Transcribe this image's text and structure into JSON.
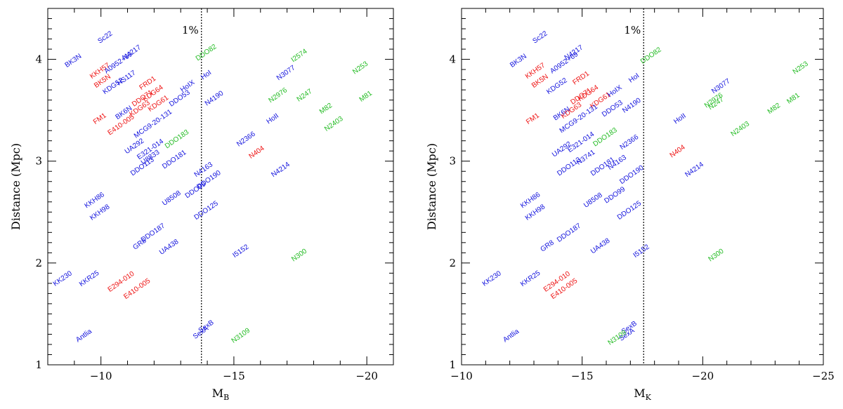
{
  "colors": {
    "blue": "#1010dd",
    "red": "#ee1111",
    "green": "#22bb22"
  },
  "chart_data": [
    {
      "type": "scatter",
      "xlabel": "M",
      "xlabel_sub": "B",
      "ylabel": "Distance (Mpc)",
      "xlim": [
        -8,
        -21
      ],
      "ylim": [
        1,
        4.5
      ],
      "xticks": [
        -10,
        -15,
        -20
      ],
      "xtick_labels": [
        "−10",
        "−15",
        "−20"
      ],
      "yticks": [
        1,
        2,
        3,
        4
      ],
      "ytick_labels": [
        "1",
        "2",
        "3",
        "4"
      ],
      "vline": {
        "x": -13.78,
        "label": "1%"
      },
      "points": [
        {
          "label": "BK3N",
          "x": -9.0,
          "y": 3.97,
          "c": "blue"
        },
        {
          "label": "Sc22",
          "x": -10.2,
          "y": 4.2,
          "c": "blue"
        },
        {
          "label": "KKH57",
          "x": -10.0,
          "y": 3.87,
          "c": "red"
        },
        {
          "label": "A0952+69",
          "x": -10.7,
          "y": 3.95,
          "c": "blue"
        },
        {
          "label": "N4217",
          "x": -11.2,
          "y": 4.05,
          "c": "blue"
        },
        {
          "label": "BK5N",
          "x": -10.1,
          "y": 3.77,
          "c": "red"
        },
        {
          "label": "KDG52",
          "x": -10.5,
          "y": 3.72,
          "c": "blue"
        },
        {
          "label": "HS117",
          "x": -11.0,
          "y": 3.8,
          "c": "blue"
        },
        {
          "label": "FM1",
          "x": -10.0,
          "y": 3.4,
          "c": "red"
        },
        {
          "label": "BK6N",
          "x": -10.9,
          "y": 3.46,
          "c": "blue"
        },
        {
          "label": "E410-005",
          "x": -10.8,
          "y": 3.34,
          "c": "red"
        },
        {
          "label": "KDG63",
          "x": -11.5,
          "y": 3.5,
          "c": "red"
        },
        {
          "label": "FRD1",
          "x": -11.8,
          "y": 3.75,
          "c": "red"
        },
        {
          "label": "DDO71",
          "x": -11.6,
          "y": 3.6,
          "c": "red"
        },
        {
          "label": "KDG64",
          "x": -12.0,
          "y": 3.65,
          "c": "red"
        },
        {
          "label": "KDG61",
          "x": -12.2,
          "y": 3.55,
          "c": "red"
        },
        {
          "label": "MCG9-20-131",
          "x": -12.0,
          "y": 3.35,
          "c": "blue"
        },
        {
          "label": "DDO53",
          "x": -13.0,
          "y": 3.6,
          "c": "blue"
        },
        {
          "label": "HoIX",
          "x": -13.3,
          "y": 3.72,
          "c": "blue"
        },
        {
          "label": "DDO82",
          "x": -14.0,
          "y": 4.05,
          "c": "green"
        },
        {
          "label": "HoI",
          "x": -14.0,
          "y": 3.83,
          "c": "blue"
        },
        {
          "label": "N4190",
          "x": -14.3,
          "y": 3.6,
          "c": "blue"
        },
        {
          "label": "DDO183",
          "x": -12.9,
          "y": 3.2,
          "c": "green"
        },
        {
          "label": "UA292",
          "x": -11.3,
          "y": 3.13,
          "c": "blue"
        },
        {
          "label": "E321-014",
          "x": -11.9,
          "y": 3.1,
          "c": "blue"
        },
        {
          "label": "U8833",
          "x": -11.9,
          "y": 3.02,
          "c": "blue"
        },
        {
          "label": "DDO113",
          "x": -11.6,
          "y": 2.93,
          "c": "blue"
        },
        {
          "label": "DDO181",
          "x": -12.8,
          "y": 3.0,
          "c": "blue"
        },
        {
          "label": "N4163",
          "x": -13.9,
          "y": 2.9,
          "c": "blue"
        },
        {
          "label": "DDO190",
          "x": -14.1,
          "y": 2.8,
          "c": "blue"
        },
        {
          "label": "DDO99",
          "x": -13.6,
          "y": 2.7,
          "c": "blue"
        },
        {
          "label": "U8508",
          "x": -12.7,
          "y": 2.62,
          "c": "blue"
        },
        {
          "label": "DDO125",
          "x": -14.0,
          "y": 2.5,
          "c": "blue"
        },
        {
          "label": "KKH86",
          "x": -9.8,
          "y": 2.6,
          "c": "blue"
        },
        {
          "label": "KKH98",
          "x": -10.0,
          "y": 2.48,
          "c": "blue"
        },
        {
          "label": "DDO187",
          "x": -12.0,
          "y": 2.28,
          "c": "blue"
        },
        {
          "label": "GR8",
          "x": -11.5,
          "y": 2.17,
          "c": "blue"
        },
        {
          "label": "UA438",
          "x": -12.6,
          "y": 2.14,
          "c": "blue"
        },
        {
          "label": "I5152",
          "x": -15.3,
          "y": 2.1,
          "c": "blue"
        },
        {
          "label": "N2366",
          "x": -15.5,
          "y": 3.2,
          "c": "blue"
        },
        {
          "label": "N404",
          "x": -15.9,
          "y": 3.07,
          "c": "red"
        },
        {
          "label": "N4214",
          "x": -16.8,
          "y": 2.9,
          "c": "blue"
        },
        {
          "label": "HoII",
          "x": -16.5,
          "y": 3.4,
          "c": "blue"
        },
        {
          "label": "N2976",
          "x": -16.7,
          "y": 3.63,
          "c": "green"
        },
        {
          "label": "N3077",
          "x": -17.0,
          "y": 3.85,
          "c": "blue"
        },
        {
          "label": "I2574",
          "x": -17.5,
          "y": 4.02,
          "c": "green"
        },
        {
          "label": "N247",
          "x": -17.7,
          "y": 3.63,
          "c": "green"
        },
        {
          "label": "M82",
          "x": -18.5,
          "y": 3.5,
          "c": "green"
        },
        {
          "label": "N2403",
          "x": -18.8,
          "y": 3.35,
          "c": "green"
        },
        {
          "label": "N253",
          "x": -19.8,
          "y": 3.9,
          "c": "green"
        },
        {
          "label": "M81",
          "x": -20.0,
          "y": 3.62,
          "c": "green"
        },
        {
          "label": "N300",
          "x": -17.5,
          "y": 2.06,
          "c": "green"
        },
        {
          "label": "KK230",
          "x": -8.6,
          "y": 1.83,
          "c": "blue"
        },
        {
          "label": "KKR25",
          "x": -9.6,
          "y": 1.83,
          "c": "blue"
        },
        {
          "label": "E294-010",
          "x": -10.8,
          "y": 1.8,
          "c": "red"
        },
        {
          "label": "E410-005",
          "x": -11.4,
          "y": 1.73,
          "c": "red"
        },
        {
          "label": "Antlia",
          "x": -9.4,
          "y": 1.27,
          "c": "blue"
        },
        {
          "label": "SexB",
          "x": -14.0,
          "y": 1.36,
          "c": "blue"
        },
        {
          "label": "SexA",
          "x": -13.8,
          "y": 1.3,
          "c": "blue"
        },
        {
          "label": "N3109",
          "x": -15.3,
          "y": 1.27,
          "c": "green"
        }
      ]
    },
    {
      "type": "scatter",
      "xlabel": "M",
      "xlabel_sub": "K",
      "ylabel": "Distance (Mpc)",
      "xlim": [
        -10,
        -25
      ],
      "ylim": [
        1,
        4.5
      ],
      "xticks": [
        -10,
        -15,
        -20,
        -25
      ],
      "xtick_labels": [
        "−10",
        "−15",
        "−20",
        "−25"
      ],
      "yticks": [
        1,
        2,
        3,
        4
      ],
      "ytick_labels": [
        "1",
        "2",
        "3",
        "4"
      ],
      "vline": {
        "x": -17.55,
        "label": "1%"
      },
      "points": [
        {
          "label": "BK3N",
          "x": -12.4,
          "y": 3.97,
          "c": "blue"
        },
        {
          "label": "Sc22",
          "x": -13.3,
          "y": 4.2,
          "c": "blue"
        },
        {
          "label": "KKH57",
          "x": -13.1,
          "y": 3.87,
          "c": "red"
        },
        {
          "label": "A0952+69",
          "x": -14.3,
          "y": 3.95,
          "c": "blue"
        },
        {
          "label": "N4217",
          "x": -14.7,
          "y": 4.05,
          "c": "blue"
        },
        {
          "label": "BK5N",
          "x": -13.3,
          "y": 3.77,
          "c": "red"
        },
        {
          "label": "KDG52",
          "x": -14.0,
          "y": 3.72,
          "c": "blue"
        },
        {
          "label": "FRD1",
          "x": -15.0,
          "y": 3.8,
          "c": "red"
        },
        {
          "label": "KDG64",
          "x": -15.3,
          "y": 3.65,
          "c": "red"
        },
        {
          "label": "KDG61",
          "x": -15.8,
          "y": 3.58,
          "c": "red"
        },
        {
          "label": "DDO71",
          "x": -15.0,
          "y": 3.62,
          "c": "red"
        },
        {
          "label": "FM1",
          "x": -13.0,
          "y": 3.4,
          "c": "red"
        },
        {
          "label": "BK6N",
          "x": -14.2,
          "y": 3.45,
          "c": "blue"
        },
        {
          "label": "KDG63",
          "x": -14.6,
          "y": 3.48,
          "c": "red"
        },
        {
          "label": "HoIX",
          "x": -16.4,
          "y": 3.67,
          "c": "blue"
        },
        {
          "label": "HoI",
          "x": -17.2,
          "y": 3.8,
          "c": "blue"
        },
        {
          "label": "DDO82",
          "x": -17.9,
          "y": 4.02,
          "c": "green"
        },
        {
          "label": "MCG9-20-131",
          "x": -14.9,
          "y": 3.4,
          "c": "blue"
        },
        {
          "label": "DDO53",
          "x": -16.3,
          "y": 3.5,
          "c": "blue"
        },
        {
          "label": "N4190",
          "x": -17.1,
          "y": 3.53,
          "c": "blue"
        },
        {
          "label": "DDO183",
          "x": -16.0,
          "y": 3.22,
          "c": "green"
        },
        {
          "label": "UA292",
          "x": -14.2,
          "y": 3.1,
          "c": "blue"
        },
        {
          "label": "E321-014",
          "x": -15.0,
          "y": 3.17,
          "c": "blue"
        },
        {
          "label": "N3741",
          "x": -15.2,
          "y": 3.02,
          "c": "blue"
        },
        {
          "label": "DDO113",
          "x": -14.5,
          "y": 2.93,
          "c": "blue"
        },
        {
          "label": "DDO181",
          "x": -15.9,
          "y": 2.93,
          "c": "blue"
        },
        {
          "label": "N4163",
          "x": -16.5,
          "y": 2.97,
          "c": "blue"
        },
        {
          "label": "N2366",
          "x": -17.0,
          "y": 3.17,
          "c": "blue"
        },
        {
          "label": "DDO190",
          "x": -17.1,
          "y": 2.85,
          "c": "blue"
        },
        {
          "label": "DDO99",
          "x": -16.4,
          "y": 2.65,
          "c": "blue"
        },
        {
          "label": "U8508",
          "x": -15.5,
          "y": 2.6,
          "c": "blue"
        },
        {
          "label": "DDO125",
          "x": -17.0,
          "y": 2.5,
          "c": "blue"
        },
        {
          "label": "KKH86",
          "x": -12.9,
          "y": 2.6,
          "c": "blue"
        },
        {
          "label": "KKH98",
          "x": -13.1,
          "y": 2.48,
          "c": "blue"
        },
        {
          "label": "DDO187",
          "x": -14.5,
          "y": 2.28,
          "c": "blue"
        },
        {
          "label": "GR8",
          "x": -13.6,
          "y": 2.15,
          "c": "blue"
        },
        {
          "label": "UA438",
          "x": -15.8,
          "y": 2.15,
          "c": "blue"
        },
        {
          "label": "I5152",
          "x": -17.5,
          "y": 2.1,
          "c": "blue"
        },
        {
          "label": "N404",
          "x": -19.0,
          "y": 3.08,
          "c": "red"
        },
        {
          "label": "HoII",
          "x": -19.1,
          "y": 3.4,
          "c": "blue"
        },
        {
          "label": "N4214",
          "x": -19.7,
          "y": 2.9,
          "c": "blue"
        },
        {
          "label": "N3077",
          "x": -20.8,
          "y": 3.72,
          "c": "blue"
        },
        {
          "label": "N2976",
          "x": -20.5,
          "y": 3.58,
          "c": "green"
        },
        {
          "label": "N247",
          "x": -20.6,
          "y": 3.55,
          "c": "green"
        },
        {
          "label": "N2403",
          "x": -21.6,
          "y": 3.3,
          "c": "green"
        },
        {
          "label": "M82",
          "x": -23.0,
          "y": 3.5,
          "c": "green"
        },
        {
          "label": "M81",
          "x": -23.8,
          "y": 3.6,
          "c": "green"
        },
        {
          "label": "N253",
          "x": -24.1,
          "y": 3.9,
          "c": "green"
        },
        {
          "label": "N300",
          "x": -20.6,
          "y": 2.06,
          "c": "green"
        },
        {
          "label": "KK230",
          "x": -11.3,
          "y": 1.83,
          "c": "blue"
        },
        {
          "label": "KKR25",
          "x": -12.9,
          "y": 1.83,
          "c": "blue"
        },
        {
          "label": "E294-010",
          "x": -14.0,
          "y": 1.8,
          "c": "red"
        },
        {
          "label": "E410-005",
          "x": -14.3,
          "y": 1.73,
          "c": "red"
        },
        {
          "label": "Antlia",
          "x": -12.1,
          "y": 1.27,
          "c": "blue"
        },
        {
          "label": "SexB",
          "x": -17.0,
          "y": 1.35,
          "c": "blue"
        },
        {
          "label": "SexA",
          "x": -16.9,
          "y": 1.28,
          "c": "blue"
        },
        {
          "label": "N3109",
          "x": -16.5,
          "y": 1.25,
          "c": "green"
        }
      ]
    }
  ]
}
